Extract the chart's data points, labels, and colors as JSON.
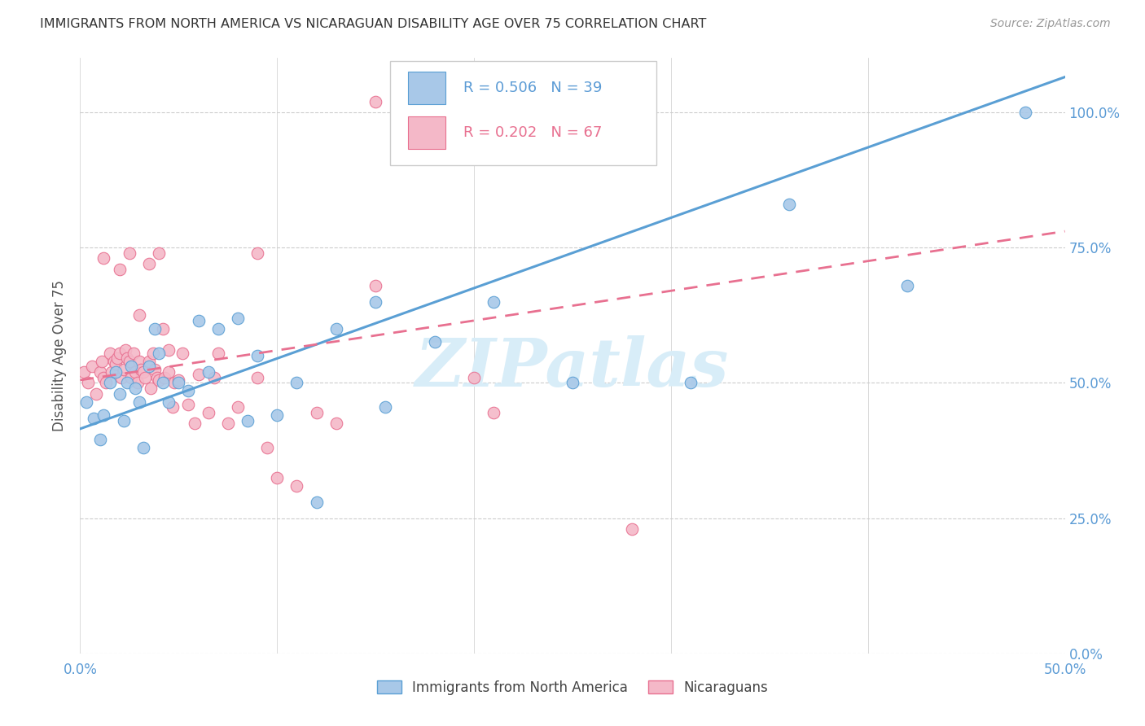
{
  "title": "IMMIGRANTS FROM NORTH AMERICA VS NICARAGUAN DISABILITY AGE OVER 75 CORRELATION CHART",
  "source": "Source: ZipAtlas.com",
  "ylabel": "Disability Age Over 75",
  "yticks": [
    "0.0%",
    "25.0%",
    "50.0%",
    "75.0%",
    "100.0%"
  ],
  "ytick_vals": [
    0.0,
    0.25,
    0.5,
    0.75,
    1.0
  ],
  "xlim": [
    0.0,
    0.5
  ],
  "ylim": [
    0.0,
    1.1
  ],
  "legend1_label": "Immigrants from North America",
  "legend2_label": "Nicaraguans",
  "r1": 0.506,
  "n1": 39,
  "r2": 0.202,
  "n2": 67,
  "blue_color": "#a8c8e8",
  "pink_color": "#f4b8c8",
  "blue_edge": "#5a9fd4",
  "pink_edge": "#e87090",
  "blue_line": "#5a9fd4",
  "pink_line": "#e87090",
  "watermark": "ZIPatlas",
  "blue_intercept": 0.415,
  "blue_slope": 1.3,
  "pink_intercept": 0.505,
  "pink_slope": 0.55,
  "blue_points_x": [
    0.003,
    0.007,
    0.01,
    0.012,
    0.015,
    0.018,
    0.02,
    0.022,
    0.024,
    0.026,
    0.028,
    0.03,
    0.032,
    0.035,
    0.038,
    0.04,
    0.042,
    0.045,
    0.05,
    0.055,
    0.06,
    0.065,
    0.07,
    0.08,
    0.085,
    0.09,
    0.1,
    0.11,
    0.12,
    0.13,
    0.15,
    0.155,
    0.18,
    0.21,
    0.25,
    0.31,
    0.36,
    0.42,
    0.48
  ],
  "blue_points_y": [
    0.465,
    0.435,
    0.395,
    0.44,
    0.5,
    0.52,
    0.48,
    0.43,
    0.5,
    0.53,
    0.49,
    0.465,
    0.38,
    0.53,
    0.6,
    0.555,
    0.5,
    0.465,
    0.5,
    0.485,
    0.615,
    0.52,
    0.6,
    0.62,
    0.43,
    0.55,
    0.44,
    0.5,
    0.28,
    0.6,
    0.65,
    0.455,
    0.575,
    0.65,
    0.5,
    0.5,
    0.83,
    0.68,
    1.0
  ],
  "pink_points_x": [
    0.002,
    0.004,
    0.006,
    0.008,
    0.01,
    0.011,
    0.012,
    0.013,
    0.015,
    0.016,
    0.017,
    0.018,
    0.019,
    0.02,
    0.021,
    0.022,
    0.023,
    0.024,
    0.025,
    0.026,
    0.027,
    0.028,
    0.029,
    0.03,
    0.031,
    0.032,
    0.033,
    0.035,
    0.036,
    0.037,
    0.038,
    0.039,
    0.04,
    0.042,
    0.043,
    0.045,
    0.047,
    0.048,
    0.05,
    0.052,
    0.055,
    0.058,
    0.06,
    0.065,
    0.068,
    0.07,
    0.075,
    0.08,
    0.09,
    0.095,
    0.1,
    0.11,
    0.12,
    0.13,
    0.15,
    0.2,
    0.21,
    0.28,
    0.012,
    0.02,
    0.025,
    0.03,
    0.035,
    0.04,
    0.045,
    0.09,
    0.15
  ],
  "pink_points_y": [
    0.52,
    0.5,
    0.53,
    0.48,
    0.52,
    0.54,
    0.51,
    0.5,
    0.555,
    0.52,
    0.54,
    0.535,
    0.545,
    0.555,
    0.51,
    0.525,
    0.56,
    0.545,
    0.54,
    0.51,
    0.555,
    0.52,
    0.5,
    0.54,
    0.525,
    0.52,
    0.51,
    0.54,
    0.49,
    0.555,
    0.525,
    0.51,
    0.505,
    0.6,
    0.51,
    0.52,
    0.455,
    0.5,
    0.505,
    0.555,
    0.46,
    0.425,
    0.515,
    0.445,
    0.51,
    0.555,
    0.425,
    0.455,
    0.51,
    0.38,
    0.325,
    0.31,
    0.445,
    0.425,
    0.68,
    0.51,
    0.445,
    0.23,
    0.73,
    0.71,
    0.74,
    0.625,
    0.72,
    0.74,
    0.56,
    0.74,
    1.02
  ]
}
